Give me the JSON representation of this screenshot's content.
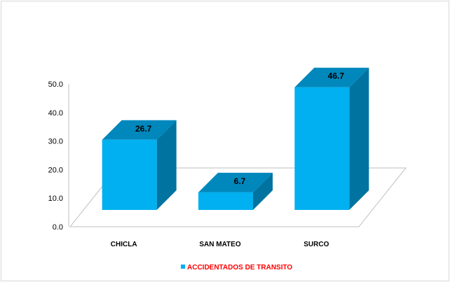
{
  "chart_data": {
    "type": "bar",
    "categories": [
      "CHICLA",
      "SAN MATEO",
      "SURCO"
    ],
    "series": [
      {
        "name": "ACCIDENTADOS DE TRANSITO",
        "values": [
          26.7,
          6.7,
          46.7
        ]
      }
    ],
    "ylim": [
      0,
      50
    ],
    "yticks": [
      "0.0",
      "10.0",
      "20.0",
      "30.0",
      "40.0",
      "50.0"
    ],
    "data_labels": [
      "26.7",
      "6.7",
      "46.7"
    ],
    "legend_position": "bottom",
    "grid": false,
    "colors": {
      "bar_front": "#00b0f0",
      "bar_top": "#0088bd",
      "bar_side": "#0073a0",
      "legend_text": "#ff0000",
      "floor_line": "#bfbfbf",
      "frame": "#d9d9d9"
    }
  }
}
